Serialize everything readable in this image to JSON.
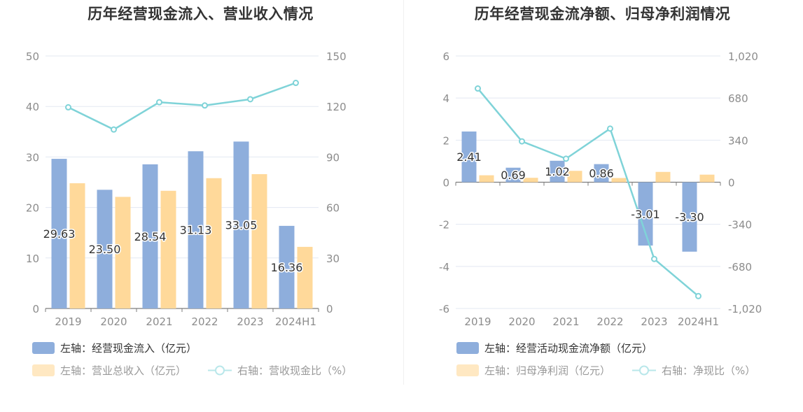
{
  "chart_data": [
    {
      "type": "bar",
      "title": "历年经营现金流入、营业收入情况",
      "categories": [
        "2019",
        "2020",
        "2021",
        "2022",
        "2023",
        "2024H1"
      ],
      "left_axis": {
        "ylim": [
          0,
          50
        ],
        "ticks": [
          "0",
          "10",
          "20",
          "30",
          "40",
          "50"
        ]
      },
      "right_axis": {
        "ylim": [
          0,
          150
        ],
        "ticks": [
          "0",
          "30",
          "60",
          "90",
          "120",
          "150"
        ]
      },
      "series": [
        {
          "name": "左轴：经营现金流入（亿元）",
          "kind": "bar",
          "axis": "left",
          "color": "#8eaedc",
          "values": [
            29.63,
            23.5,
            28.54,
            31.13,
            33.05,
            16.36
          ],
          "labels": [
            "29.63",
            "23.50",
            "28.54",
            "31.13",
            "33.05",
            "16.36"
          ]
        },
        {
          "name": "左轴：营业总收入（亿元）",
          "kind": "bar",
          "axis": "left",
          "color": "#ffd99a",
          "values": [
            24.8,
            22.1,
            23.3,
            25.8,
            26.6,
            12.2
          ]
        },
        {
          "name": "右轴：营收现金比（%）",
          "kind": "line",
          "axis": "right",
          "color": "#7fd3d8",
          "values": [
            119.5,
            106.3,
            122.5,
            120.6,
            124.3,
            134.0
          ]
        }
      ],
      "grid": true,
      "legend_placement": "bottom"
    },
    {
      "type": "bar",
      "title": "历年经营现金流净额、归母净利润情况",
      "categories": [
        "2019",
        "2020",
        "2021",
        "2022",
        "2023",
        "2024H1"
      ],
      "left_axis": {
        "ylim": [
          -6,
          6
        ],
        "ticks": [
          "-6",
          "-4",
          "-2",
          "0",
          "2",
          "4",
          "6"
        ]
      },
      "right_axis": {
        "ylim": [
          -1020,
          1020
        ],
        "ticks": [
          "-1,020",
          "-680",
          "-340",
          "0",
          "340",
          "680",
          "1,020"
        ]
      },
      "series": [
        {
          "name": "左轴：经营活动现金流净额（亿元）",
          "kind": "bar",
          "axis": "left",
          "color": "#8eaedc",
          "values": [
            2.41,
            0.69,
            1.02,
            0.86,
            -3.01,
            -3.3
          ],
          "labels": [
            "2.41",
            "0.69",
            "1.02",
            "0.86",
            "-3.01",
            "-3.30"
          ]
        },
        {
          "name": "左轴：归母净利润（亿元）",
          "kind": "bar",
          "axis": "left",
          "color": "#ffd99a",
          "values": [
            0.33,
            0.21,
            0.54,
            0.2,
            0.49,
            0.36
          ]
        },
        {
          "name": "右轴：净现比（%）",
          "kind": "line",
          "axis": "right",
          "color": "#7fd3d8",
          "values": [
            757,
            330,
            190,
            433,
            -620,
            -920
          ]
        }
      ],
      "grid": true,
      "legend_placement": "bottom"
    }
  ]
}
